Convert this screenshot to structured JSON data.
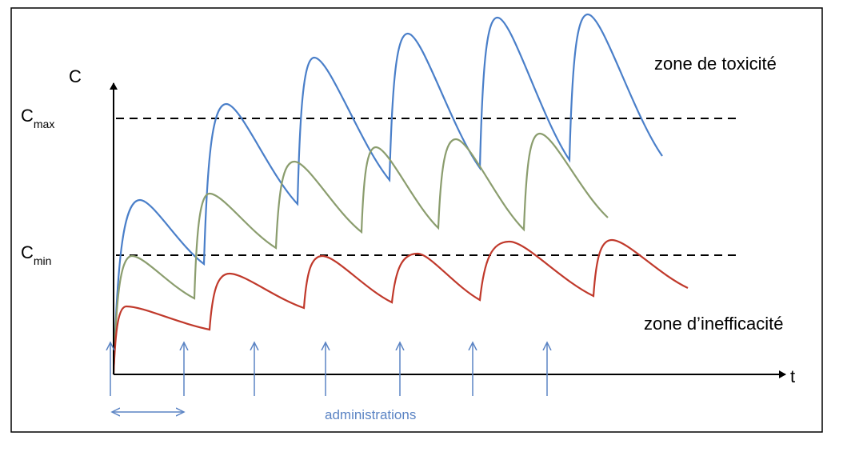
{
  "axes": {
    "y_label": "C",
    "x_label": "t"
  },
  "levels": {
    "cmax": {
      "base": "C",
      "sub": "max"
    },
    "cmin": {
      "base": "C",
      "sub": "min"
    }
  },
  "zones": {
    "toxic": "zone de toxicité",
    "ineffective": "zone d’inefficacité"
  },
  "administrations": "administrations"
}
